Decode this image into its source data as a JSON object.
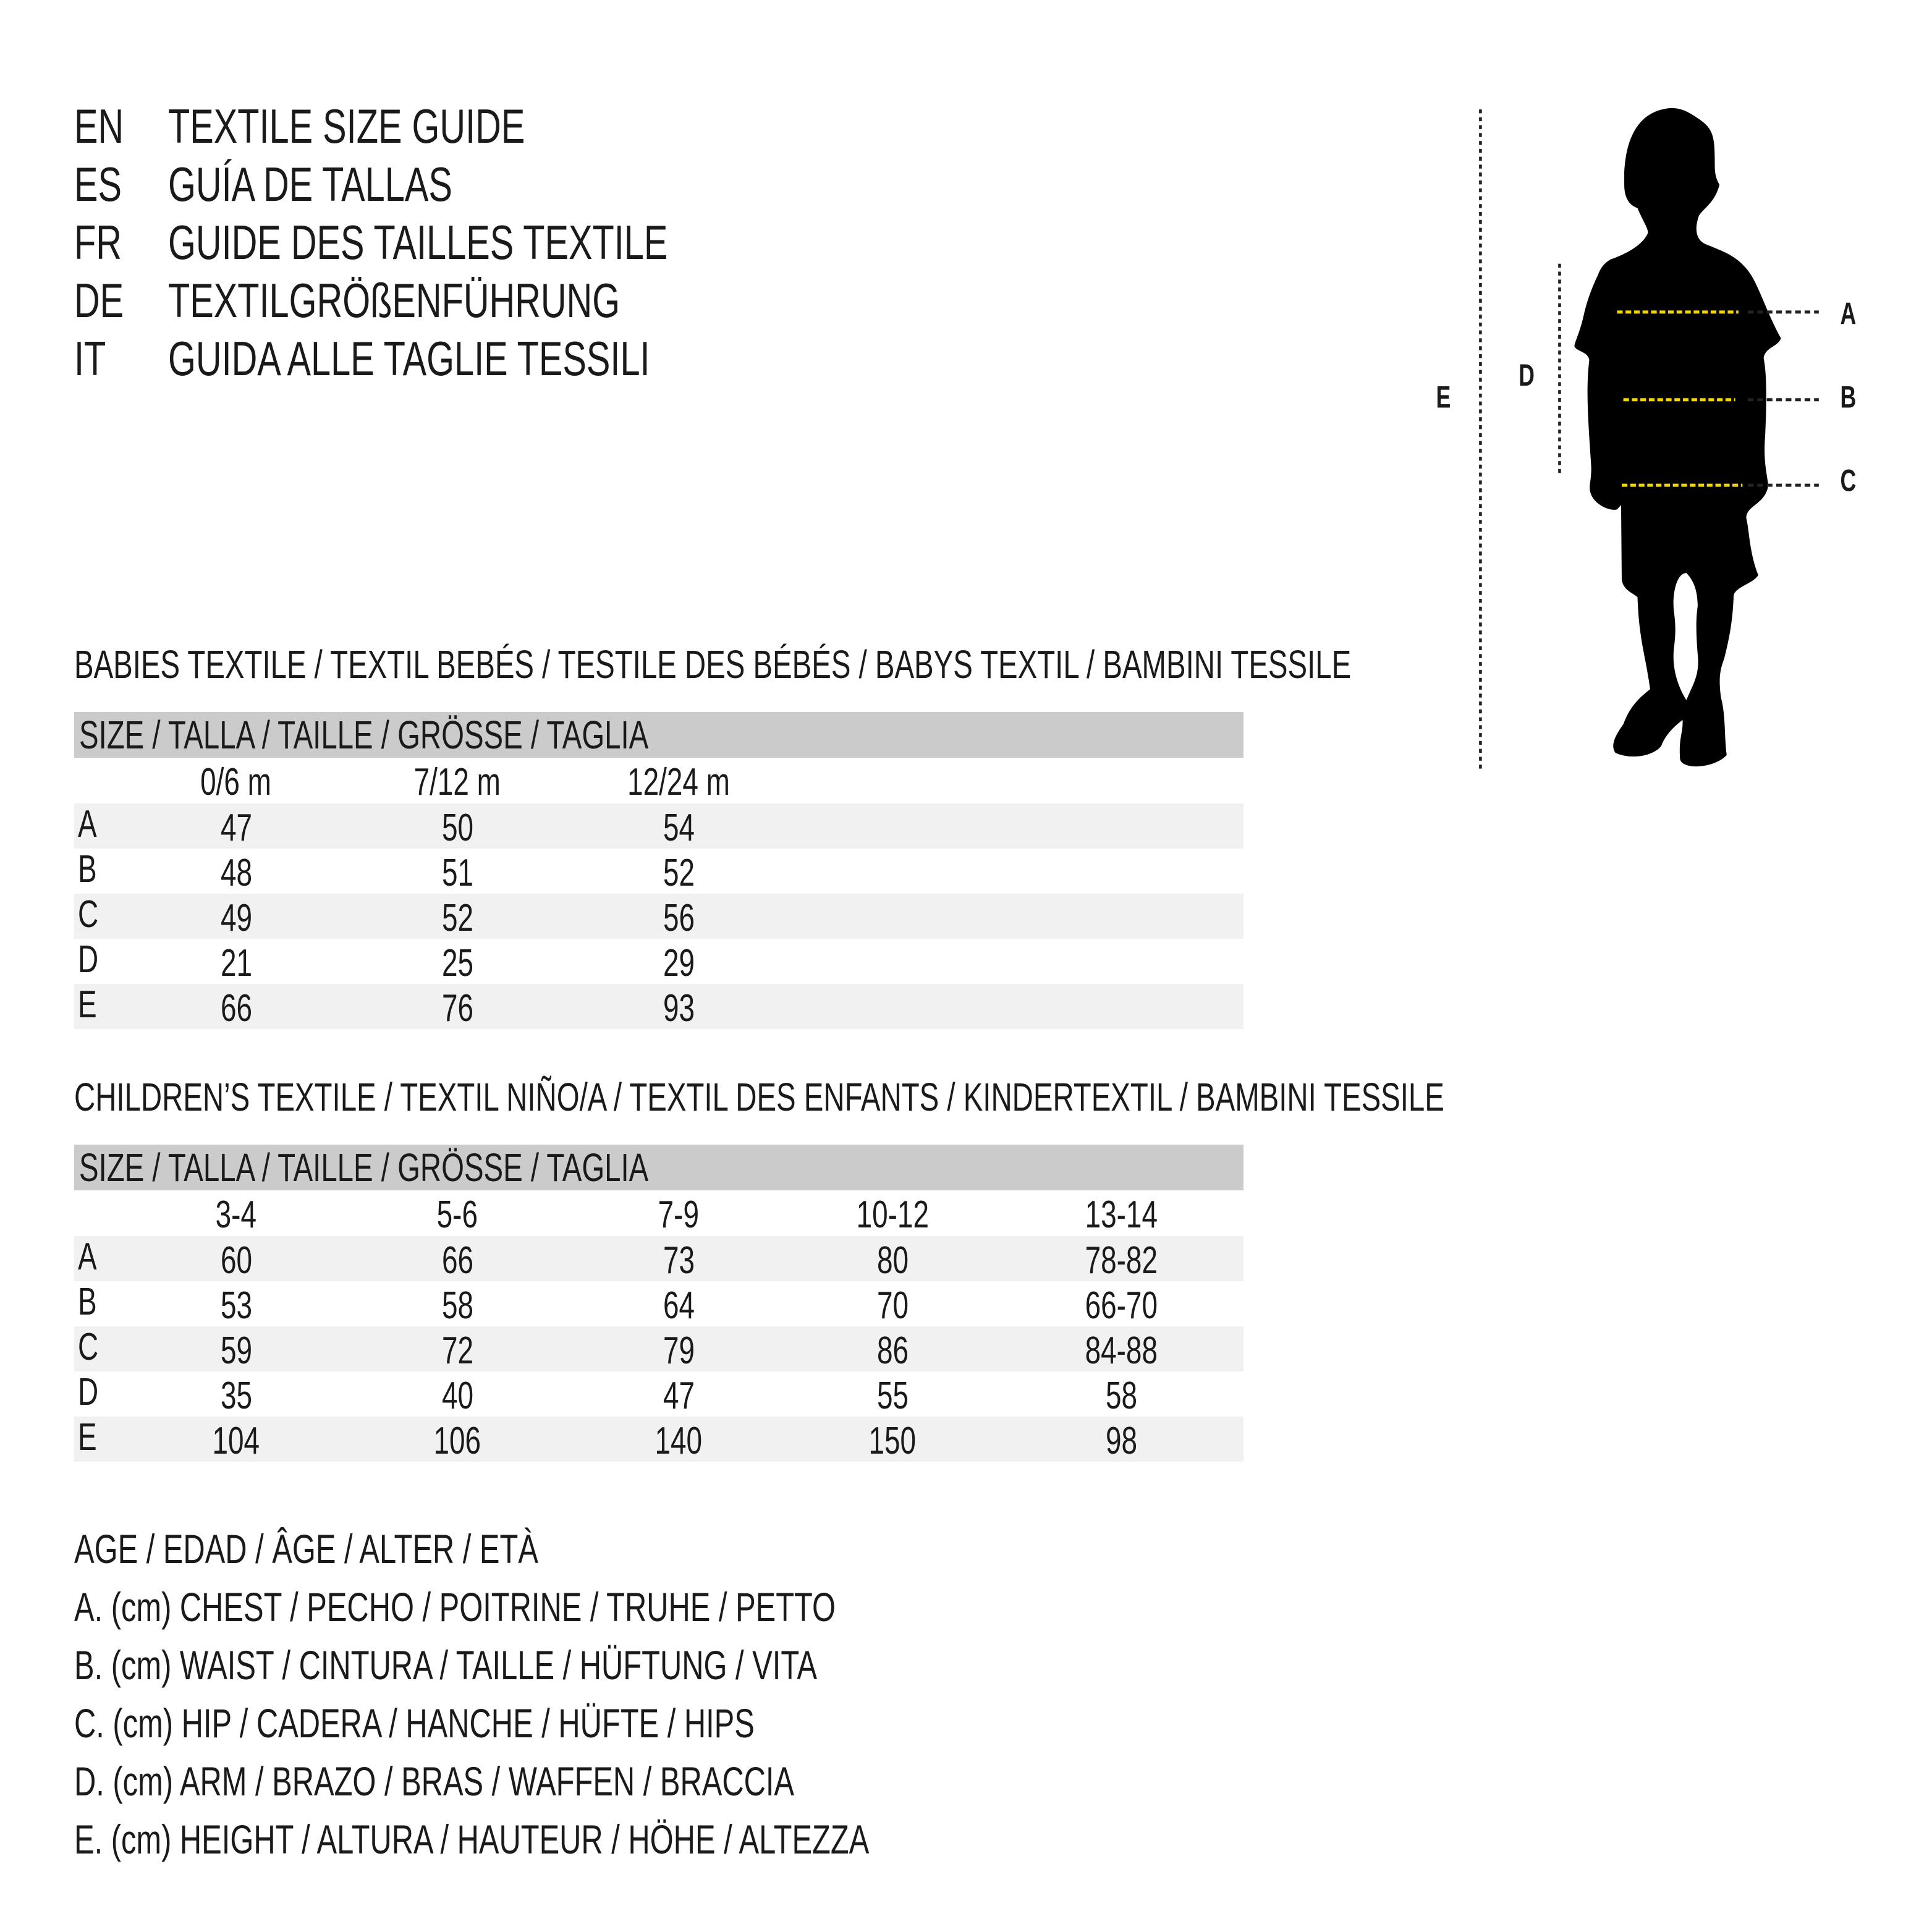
{
  "titles": [
    {
      "code": "EN",
      "text": "TEXTILE SIZE GUIDE"
    },
    {
      "code": "ES",
      "text": "GUÍA DE TALLAS"
    },
    {
      "code": "FR",
      "text": "GUIDE DES TAILLES TEXTILE"
    },
    {
      "code": "DE",
      "text": "TEXTILGRÖßENFÜHRUNG"
    },
    {
      "code": "IT",
      "text": "GUIDA ALLE TAGLIE TESSILI"
    }
  ],
  "babies": {
    "heading": "BABIES TEXTILE / TEXTIL BEBÉS / TESTILE DES BÉBÉS / BABYS TEXTIL / BAMBINI TESSILE",
    "size_header": "SIZE / TALLA / TAILLE / GRÖSSE / TAGLIA",
    "columns": [
      "0/6 m",
      "7/12 m",
      "12/24 m"
    ],
    "rows": [
      {
        "label": "A",
        "values": [
          "47",
          "50",
          "54"
        ]
      },
      {
        "label": "B",
        "values": [
          "48",
          "51",
          "52"
        ]
      },
      {
        "label": "C",
        "values": [
          "49",
          "52",
          "56"
        ]
      },
      {
        "label": "D",
        "values": [
          "21",
          "25",
          "29"
        ]
      },
      {
        "label": "E",
        "values": [
          "66",
          "76",
          "93"
        ]
      }
    ]
  },
  "children": {
    "heading": "CHILDREN’S TEXTILE / TEXTIL NIÑO/A / TEXTIL DES ENFANTS / KINDERTEXTIL / BAMBINI TESSILE",
    "size_header": "SIZE / TALLA / TAILLE / GRÖSSE / TAGLIA",
    "columns": [
      "3-4",
      "5-6",
      "7-9",
      "10-12",
      "13-14"
    ],
    "rows": [
      {
        "label": "A",
        "values": [
          "60",
          "66",
          "73",
          "80",
          "78-82"
        ]
      },
      {
        "label": "B",
        "values": [
          "53",
          "58",
          "64",
          "70",
          "66-70"
        ]
      },
      {
        "label": "C",
        "values": [
          "59",
          "72",
          "79",
          "86",
          "84-88"
        ]
      },
      {
        "label": "D",
        "values": [
          "35",
          "40",
          "47",
          "55",
          "58"
        ]
      },
      {
        "label": "E",
        "values": [
          "104",
          "106",
          "140",
          "150",
          "98"
        ]
      }
    ]
  },
  "legend": [
    "AGE / EDAD / ÂGE / ALTER / ETÀ",
    "A. (cm) CHEST / PECHO / POITRINE / TRUHE / PETTO",
    "B. (cm) WAIST / CINTURA / TAILLE / HÜFTUNG / VITA",
    "C. (cm) HIP / CADERA / HANCHE / HÜFTE / HIPS",
    "D. (cm) ARM / BRAZO / BRAS / WAFFEN / BRACCIA",
    "E. (cm) HEIGHT / ALTURA / HAUTEUR / HÖHE / ALTEZZA"
  ],
  "figure": {
    "labels": {
      "a": "A",
      "b": "B",
      "c": "C",
      "d": "D",
      "e": "E"
    },
    "colors": {
      "silhouette": "#000000",
      "measure_line": "#f2d600",
      "guide_line": "#222222",
      "header_bar": "#cbcbcc",
      "row_shade": "#f1f1f1"
    }
  }
}
